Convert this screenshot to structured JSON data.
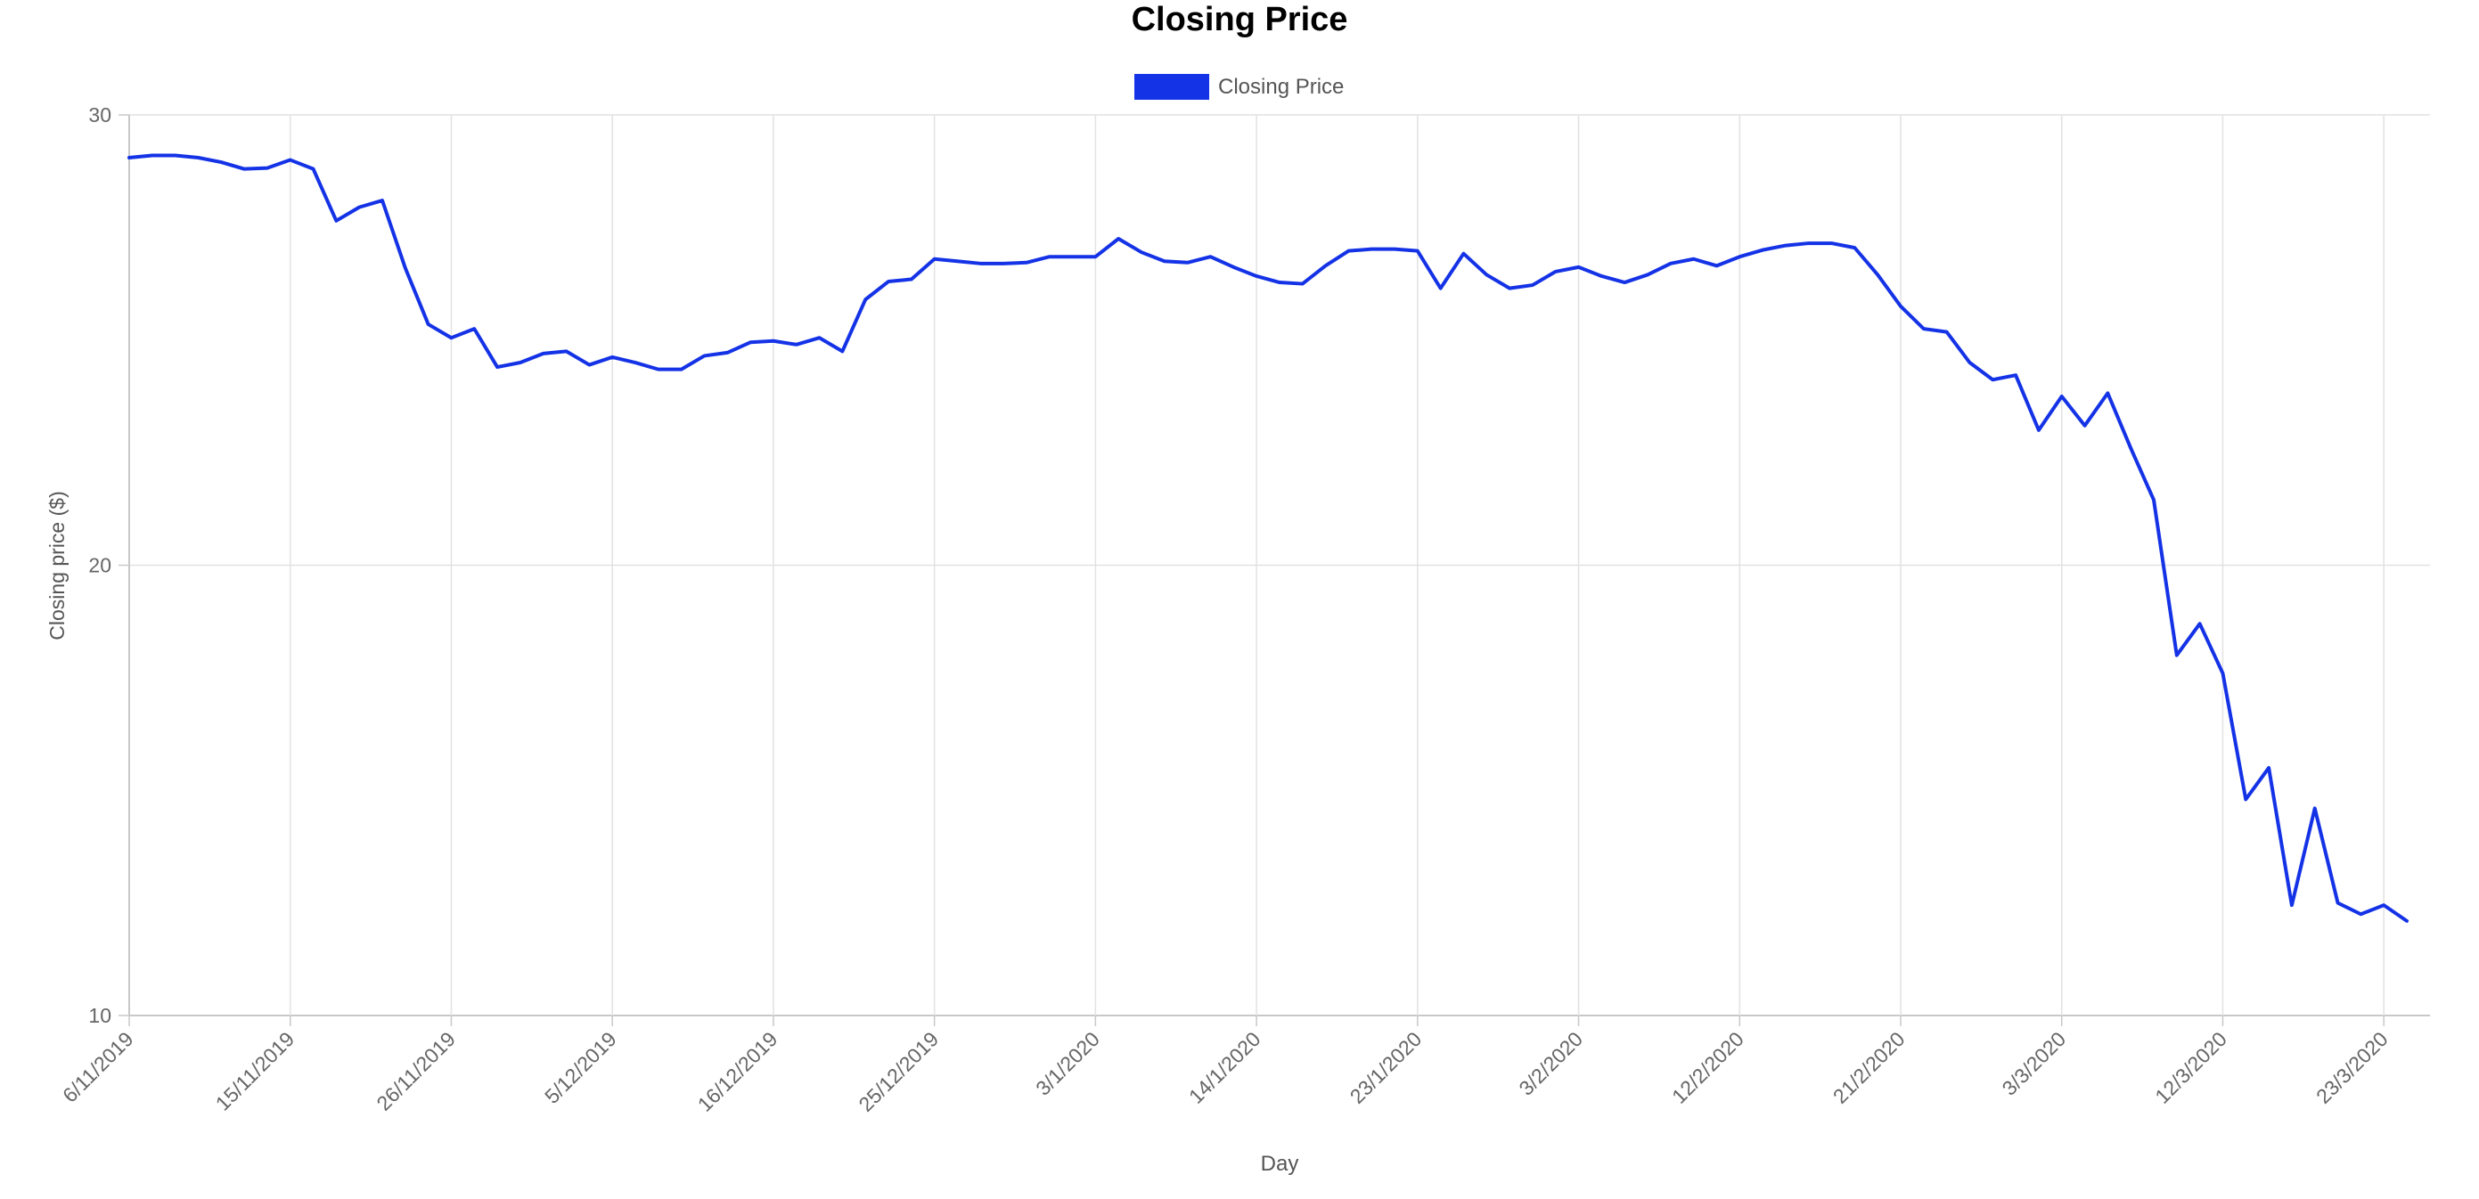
{
  "chart_data": {
    "type": "line",
    "title": "Closing Price",
    "xlabel": "Day",
    "ylabel": "Closing price ($)",
    "ylim": [
      10,
      30
    ],
    "y_ticks": [
      10,
      20,
      30
    ],
    "x_tick_labels": [
      "6/11/2019",
      "15/11/2019",
      "26/11/2019",
      "5/12/2019",
      "16/12/2019",
      "25/12/2019",
      "3/1/2020",
      "14/1/2020",
      "23/1/2020",
      "3/2/2020",
      "12/2/2020",
      "21/2/2020",
      "3/3/2020",
      "12/3/2020",
      "23/3/2020"
    ],
    "x_tick_index": [
      0,
      7,
      14,
      21,
      28,
      35,
      42,
      49,
      56,
      63,
      70,
      77,
      84,
      91,
      98
    ],
    "grid": true,
    "legend_position": "top",
    "series": [
      {
        "name": "Closing Price",
        "color": "#1432e6",
        "values": [
          29.05,
          29.1,
          29.1,
          29.05,
          28.95,
          28.8,
          28.82,
          29.0,
          28.8,
          27.65,
          27.95,
          28.1,
          26.6,
          25.35,
          25.05,
          25.25,
          24.4,
          24.5,
          24.7,
          24.75,
          24.45,
          24.62,
          24.5,
          24.35,
          24.35,
          24.65,
          24.72,
          24.95,
          24.98,
          24.9,
          25.05,
          24.75,
          25.9,
          26.3,
          26.35,
          26.8,
          26.75,
          26.7,
          26.7,
          26.72,
          26.85,
          26.85,
          26.85,
          27.25,
          26.95,
          26.75,
          26.72,
          26.85,
          26.62,
          26.42,
          26.28,
          26.25,
          26.65,
          26.98,
          27.02,
          27.02,
          26.98,
          26.15,
          26.92,
          26.45,
          26.15,
          26.22,
          26.52,
          26.62,
          26.42,
          26.28,
          26.45,
          26.7,
          26.8,
          26.65,
          26.85,
          27.0,
          27.1,
          27.15,
          27.15,
          27.05,
          26.45,
          25.75,
          25.25,
          25.18,
          24.5,
          24.12,
          24.22,
          23.0,
          23.75,
          23.1,
          23.82,
          22.6,
          21.45,
          18.0,
          18.7,
          17.6,
          14.8,
          15.5,
          12.45,
          14.6,
          12.5,
          12.25,
          12.45,
          12.1
        ]
      }
    ]
  }
}
